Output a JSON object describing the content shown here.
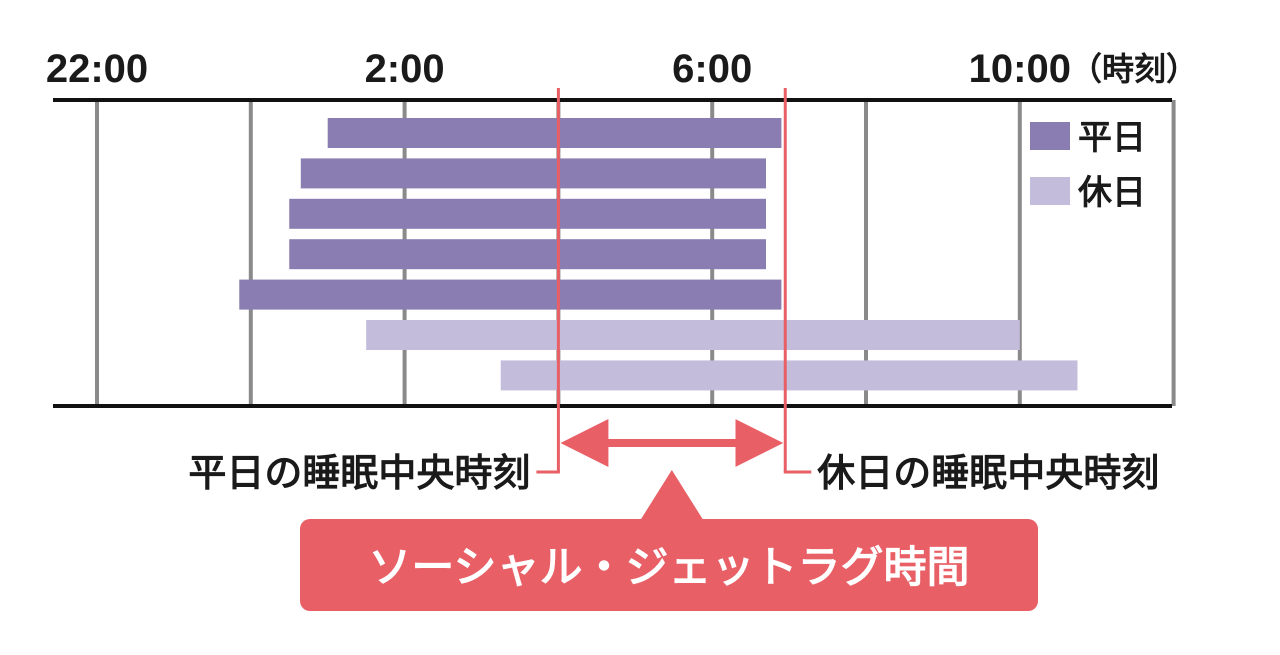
{
  "chart_data": {
    "type": "bar",
    "orientation": "horizontal-range",
    "x_ticks": [
      "22:00",
      "2:00",
      "6:00",
      "10:00"
    ],
    "x_unit": "（時刻）",
    "xlim": [
      22,
      36
    ],
    "legend": {
      "placement": "top-right",
      "entries": [
        {
          "name": "平日",
          "color": "#8a7db2"
        },
        {
          "name": "休日",
          "color": "#c4bcdb"
        }
      ]
    },
    "bars": [
      {
        "series": "平日",
        "start": 25.0,
        "end": 30.9
      },
      {
        "series": "平日",
        "start": 24.65,
        "end": 30.7
      },
      {
        "series": "平日",
        "start": 24.5,
        "end": 30.7
      },
      {
        "series": "平日",
        "start": 24.5,
        "end": 30.7
      },
      {
        "series": "平日",
        "start": 23.85,
        "end": 30.9
      },
      {
        "series": "休日",
        "start": 25.5,
        "end": 34.0
      },
      {
        "series": "休日",
        "start": 27.25,
        "end": 34.75
      }
    ],
    "midpoint_lines": [
      {
        "label": "平日の睡眠中央時刻",
        "x": 28.0
      },
      {
        "label": "休日の睡眠中央時刻",
        "x": 30.95
      }
    ],
    "callout": "ソーシャル・ジェットラグ時間",
    "grid": true
  },
  "colors": {
    "weekday": "#8a7db2",
    "holiday": "#c4bcdb",
    "accent": "#e85f66",
    "grid": "#8a8a8a",
    "axis": "#111111"
  }
}
